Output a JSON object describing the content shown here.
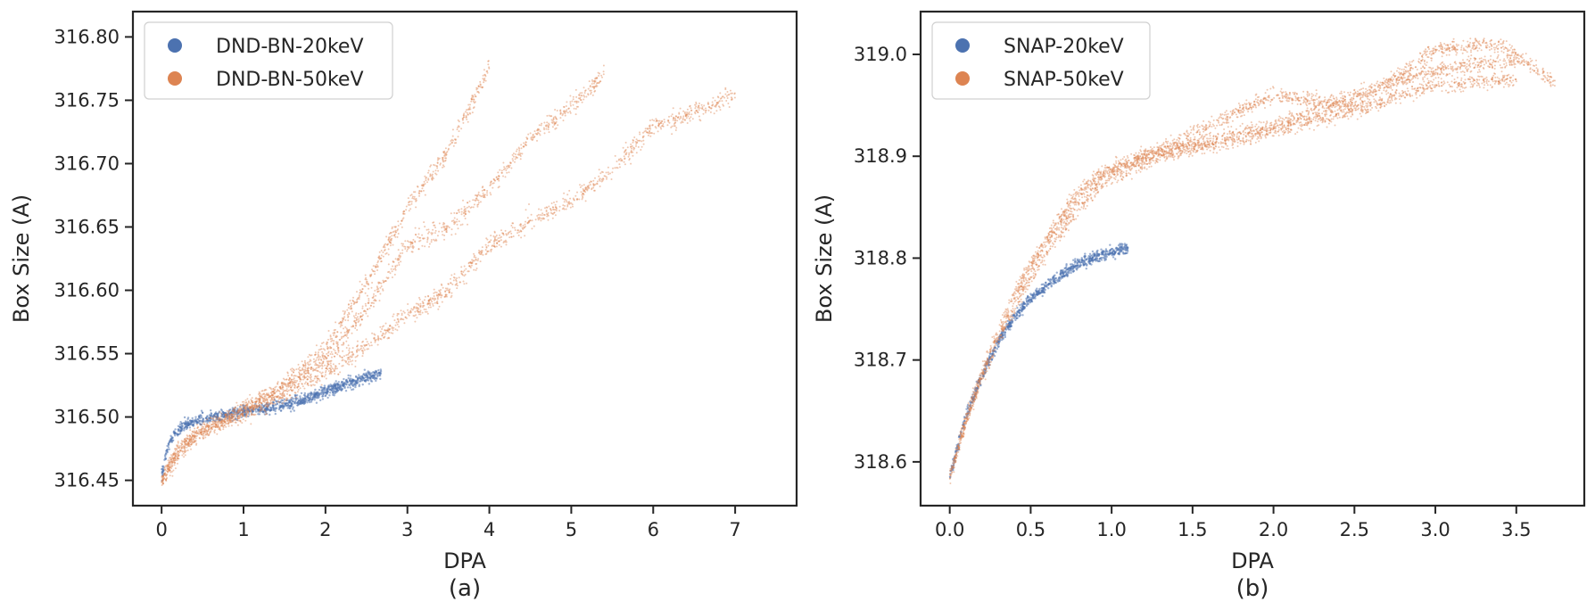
{
  "chart_data": [
    {
      "type": "scatter",
      "caption": "(a)",
      "xlabel": "DPA",
      "ylabel": "Box Size (A)",
      "xlim": [
        -0.35,
        7.75
      ],
      "ylim": [
        316.43,
        316.82
      ],
      "xticks": [
        0,
        1,
        2,
        3,
        4,
        5,
        6,
        7
      ],
      "yticks": [
        316.45,
        316.5,
        316.55,
        316.6,
        316.65,
        316.7,
        316.75,
        316.8
      ],
      "x_decimals": 0,
      "y_decimals": 2,
      "legend_position": "top-left",
      "series": [
        {
          "name": "DND-BN-20keV",
          "color": "#4c72b0",
          "runs": [
            {
              "x": [
                0.0,
                0.05,
                0.1,
                0.2,
                0.35,
                0.5,
                0.75,
                1.0,
                1.3,
                1.6,
                2.0,
                2.3,
                2.68
              ],
              "y": [
                316.452,
                316.47,
                316.48,
                316.49,
                316.495,
                316.498,
                316.501,
                316.504,
                316.507,
                316.511,
                316.52,
                316.527,
                316.535
              ]
            }
          ],
          "spread": 0.005
        },
        {
          "name": "DND-BN-50keV",
          "color": "#dd8452",
          "runs": [
            {
              "x": [
                0.0,
                0.2,
                0.5,
                1.0,
                1.5,
                2.0,
                2.5,
                3.0,
                3.5,
                4.0
              ],
              "y": [
                316.45,
                316.473,
                316.49,
                316.505,
                316.525,
                316.555,
                316.605,
                316.665,
                316.71,
                316.775
              ]
            },
            {
              "x": [
                0.0,
                0.2,
                0.5,
                1.0,
                1.5,
                2.0,
                2.5,
                3.0,
                3.5,
                4.0,
                4.5,
                5.0,
                5.4
              ],
              "y": [
                316.45,
                316.473,
                316.49,
                316.505,
                316.522,
                316.545,
                316.585,
                316.635,
                316.65,
                316.68,
                316.72,
                316.745,
                316.77
              ]
            },
            {
              "x": [
                0.0,
                0.2,
                0.5,
                1.0,
                1.5,
                2.0,
                2.5,
                3.0,
                3.5,
                4.0,
                4.5,
                5.0,
                5.5,
                6.0,
                6.5,
                7.0
              ],
              "y": [
                316.45,
                316.472,
                316.488,
                316.503,
                316.518,
                316.535,
                316.555,
                316.58,
                316.6,
                316.635,
                316.655,
                316.67,
                316.695,
                316.73,
                316.74,
                316.755
              ]
            }
          ],
          "spread": 0.008
        }
      ]
    },
    {
      "type": "scatter",
      "caption": "(b)",
      "xlabel": "DPA",
      "ylabel": "Box Size (A)",
      "xlim": [
        -0.18,
        3.92
      ],
      "ylim": [
        318.557,
        319.042
      ],
      "xticks": [
        0.0,
        0.5,
        1.0,
        1.5,
        2.0,
        2.5,
        3.0,
        3.5
      ],
      "yticks": [
        318.6,
        318.7,
        318.8,
        318.9,
        319.0
      ],
      "x_decimals": 1,
      "y_decimals": 1,
      "legend_position": "top-left",
      "series": [
        {
          "name": "SNAP-20keV",
          "color": "#4c72b0",
          "runs": [
            {
              "x": [
                0.0,
                0.05,
                0.1,
                0.2,
                0.3,
                0.4,
                0.5,
                0.6,
                0.7,
                0.8,
                0.9,
                1.0,
                1.1
              ],
              "y": [
                318.585,
                318.615,
                318.645,
                318.685,
                318.718,
                318.742,
                318.76,
                318.773,
                318.785,
                318.795,
                318.801,
                318.806,
                318.81
              ]
            }
          ],
          "spread": 0.006
        },
        {
          "name": "SNAP-50keV",
          "color": "#dd8452",
          "runs": [
            {
              "x": [
                0.0,
                0.1,
                0.2,
                0.3,
                0.4,
                0.5,
                0.6,
                0.8,
                1.0,
                1.3,
                1.6,
                2.0,
                2.5,
                3.0,
                3.4,
                3.75
              ],
              "y": [
                318.585,
                318.64,
                318.685,
                318.725,
                318.76,
                318.79,
                318.815,
                318.86,
                318.885,
                318.905,
                318.93,
                318.96,
                318.95,
                319.005,
                319.01,
                318.97
              ]
            },
            {
              "x": [
                0.0,
                0.1,
                0.2,
                0.3,
                0.4,
                0.5,
                0.6,
                0.8,
                1.0,
                1.3,
                1.6,
                2.0,
                2.5,
                3.0,
                3.5
              ],
              "y": [
                318.585,
                318.638,
                318.68,
                318.718,
                318.752,
                318.78,
                318.805,
                318.85,
                318.88,
                318.9,
                318.915,
                318.93,
                318.96,
                318.985,
                318.995
              ]
            },
            {
              "x": [
                0.0,
                0.1,
                0.2,
                0.3,
                0.4,
                0.5,
                0.6,
                0.8,
                1.0,
                1.3,
                1.6,
                2.0,
                2.5,
                3.0,
                3.5
              ],
              "y": [
                318.585,
                318.642,
                318.69,
                318.73,
                318.765,
                318.795,
                318.82,
                318.868,
                318.89,
                318.905,
                318.91,
                318.925,
                318.945,
                318.97,
                318.975
              ]
            }
          ],
          "spread": 0.008
        }
      ]
    }
  ]
}
